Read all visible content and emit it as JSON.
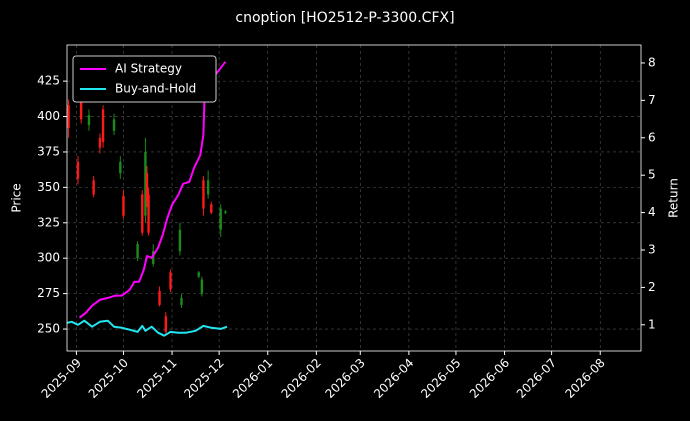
{
  "chart_data": {
    "type": "candlestick",
    "title": "cnoption [HO2512-P-3300.CFX]",
    "ylabel": "Price",
    "y2label": "Return",
    "x": [
      "2025-08-27",
      "2025-09-02",
      "2025-09-04",
      "2025-09-09",
      "2025-09-12",
      "2025-09-16",
      "2025-09-18",
      "2025-09-25",
      "2025-09-29",
      "2025-10-01",
      "2025-10-10",
      "2025-10-13",
      "2025-10-15",
      "2025-10-16",
      "2025-10-17",
      "2025-10-20",
      "2025-10-24",
      "2025-10-28",
      "2025-10-31",
      "2025-11-06",
      "2025-11-07",
      "2025-11-18",
      "2025-11-20",
      "2025-11-21",
      "2025-11-24",
      "2025-11-26",
      "2025-12-02",
      "2025-12-05"
    ],
    "open": [
      408,
      368,
      412,
      394,
      355,
      385,
      405,
      390,
      360,
      344,
      300,
      345,
      330,
      360,
      345,
      296,
      277,
      259,
      290,
      305,
      267,
      287,
      275,
      355,
      345,
      338,
      320,
      332
    ],
    "high": [
      412,
      372,
      415,
      405,
      358,
      388,
      408,
      402,
      372,
      348,
      312,
      348,
      385,
      365,
      350,
      310,
      280,
      262,
      292,
      325,
      275,
      291,
      287,
      358,
      362,
      340,
      338,
      334
    ],
    "low": [
      385,
      352,
      395,
      390,
      343,
      374,
      378,
      387,
      356,
      328,
      298,
      316,
      325,
      336,
      316,
      294,
      266,
      246,
      276,
      302,
      265,
      286,
      273,
      330,
      342,
      331,
      315,
      331
    ],
    "close": [
      392,
      356,
      398,
      401,
      345,
      378,
      382,
      398,
      368,
      330,
      310,
      318,
      375,
      340,
      318,
      305,
      267,
      248,
      278,
      320,
      272,
      290,
      285,
      335,
      355,
      332,
      335,
      333
    ],
    "up_color": "#1a8c1a",
    "down_color": "#ff1a1a",
    "series": [
      {
        "name": "AI Strategy",
        "color": "#ff00ff",
        "axis": "y2",
        "x": [
          "2025-09-03",
          "2025-09-07",
          "2025-09-11",
          "2025-09-16",
          "2025-09-21",
          "2025-09-26",
          "2025-09-30",
          "2025-10-05",
          "2025-10-08",
          "2025-10-11",
          "2025-10-14",
          "2025-10-16",
          "2025-10-19",
          "2025-10-23",
          "2025-10-26",
          "2025-10-29",
          "2025-11-01",
          "2025-11-05",
          "2025-11-08",
          "2025-11-12",
          "2025-11-15",
          "2025-11-19",
          "2025-11-21",
          "2025-11-22",
          "2025-11-25",
          "2025-11-30",
          "2025-12-05"
        ],
        "values": [
          1.19,
          1.32,
          1.51,
          1.67,
          1.72,
          1.78,
          1.78,
          1.94,
          2.15,
          2.15,
          2.47,
          2.84,
          2.79,
          3.06,
          3.4,
          3.86,
          4.21,
          4.47,
          4.77,
          4.82,
          5.19,
          5.54,
          6.08,
          7.49,
          7.49,
          7.76,
          8.03
        ]
      },
      {
        "name": "Buy-and-Hold",
        "color": "#22e6f0",
        "axis": "y2",
        "x": [
          "2025-08-26",
          "2025-08-29",
          "2025-09-02",
          "2025-09-06",
          "2025-09-11",
          "2025-09-16",
          "2025-09-21",
          "2025-09-25",
          "2025-09-30",
          "2025-10-05",
          "2025-10-10",
          "2025-10-13",
          "2025-10-15",
          "2025-10-19",
          "2025-10-23",
          "2025-10-27",
          "2025-10-31",
          "2025-11-05",
          "2025-11-10",
          "2025-11-16",
          "2025-11-21",
          "2025-11-26",
          "2025-12-02",
          "2025-12-06"
        ],
        "values": [
          1.05,
          1.08,
          1.0,
          1.11,
          0.95,
          1.08,
          1.11,
          0.95,
          0.92,
          0.87,
          0.81,
          0.97,
          0.84,
          0.95,
          0.79,
          0.71,
          0.81,
          0.79,
          0.79,
          0.84,
          0.97,
          0.92,
          0.89,
          0.95
        ]
      }
    ],
    "xlim": [
      "2025-08-26",
      "2026-08-27"
    ],
    "xticks": [
      "2025-09",
      "2025-10",
      "2025-11",
      "2025-12",
      "2026-01",
      "2026-02",
      "2026-03",
      "2026-04",
      "2026-05",
      "2026-06",
      "2026-07",
      "2026-08"
    ],
    "ylim": [
      234.5,
      450.5
    ],
    "yticks": [
      250,
      275,
      300,
      325,
      350,
      375,
      400,
      425
    ],
    "y2lim": [
      0.3,
      8.48
    ],
    "y2ticks": [
      1,
      2,
      3,
      4,
      5,
      6,
      7,
      8
    ],
    "grid": true,
    "legend": "upper left"
  }
}
